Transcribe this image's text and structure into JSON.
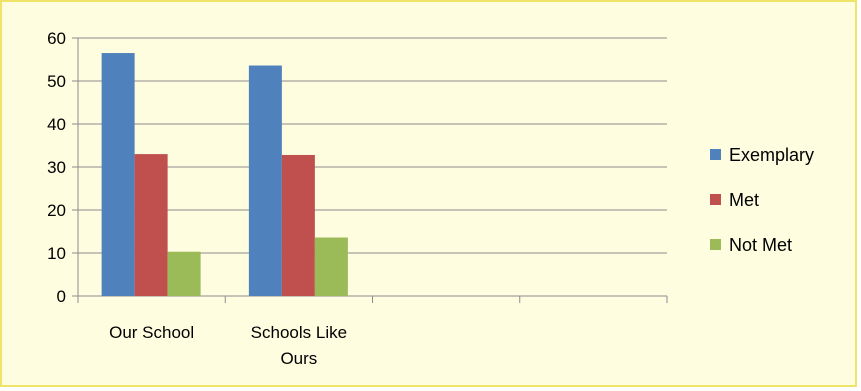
{
  "chart_data": {
    "type": "bar",
    "title": "",
    "xlabel": "",
    "ylabel": "",
    "categories": [
      [
        "Our School"
      ],
      [
        "Schools Like",
        "Ours"
      ],
      [
        ""
      ],
      [
        ""
      ]
    ],
    "series": [
      {
        "name": "Exemplary",
        "color": "#4f81bd",
        "values": [
          56.5,
          53.6,
          null,
          null
        ]
      },
      {
        "name": "Met",
        "color": "#c0504d",
        "values": [
          33.0,
          32.8,
          null,
          null
        ]
      },
      {
        "name": "Not Met",
        "color": "#9bbb59",
        "values": [
          10.3,
          13.6,
          null,
          null
        ]
      }
    ],
    "ylim": [
      0,
      60
    ],
    "yticks": [
      0,
      10,
      20,
      30,
      40,
      50,
      60
    ],
    "grid": true,
    "legend_position": "right"
  }
}
